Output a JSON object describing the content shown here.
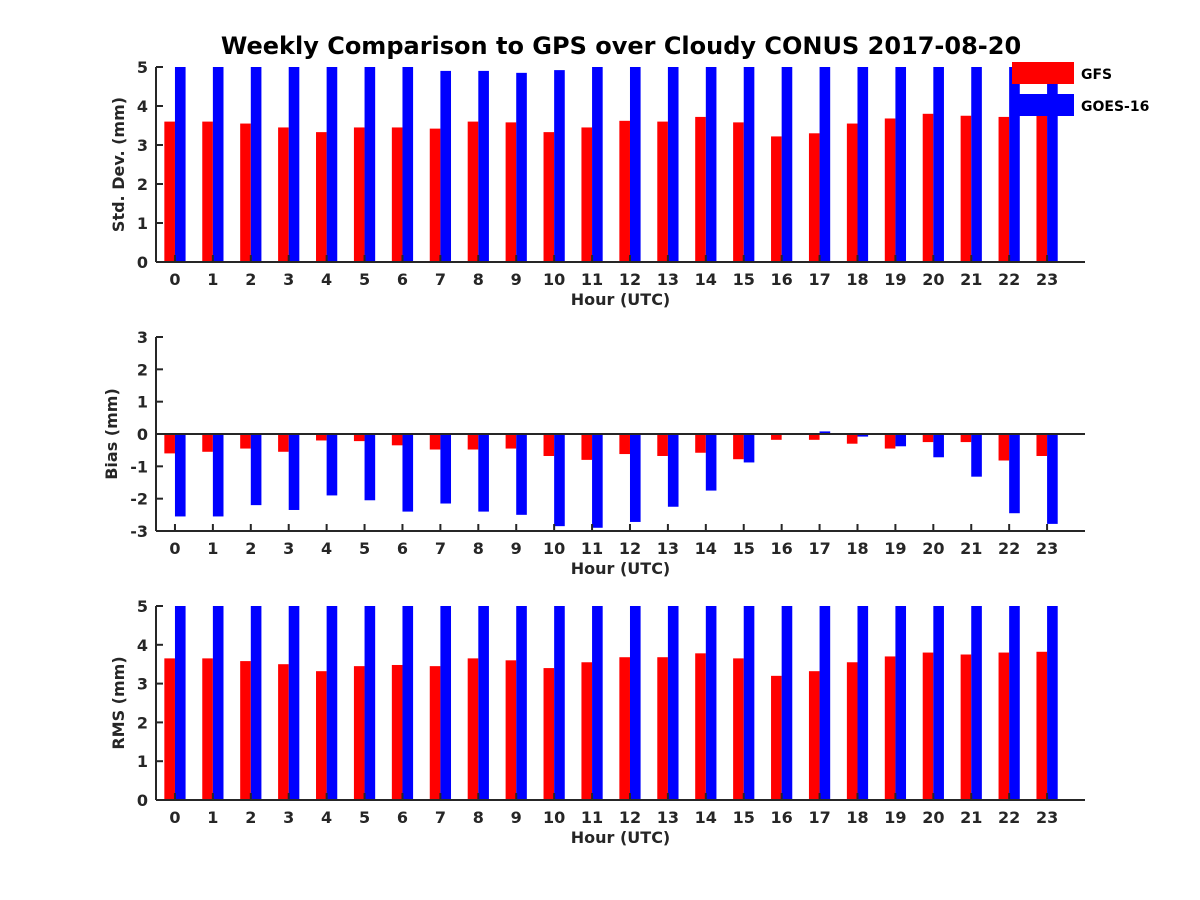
{
  "chart_data": [
    {
      "type": "bar",
      "title": "Weekly Comparison to GPS over Cloudy CONUS 2017-08-20",
      "xlabel": "Hour (UTC)",
      "ylabel": "Std. Dev. (mm)",
      "ylim": [
        0,
        5
      ],
      "yticks": [
        0,
        1,
        2,
        3,
        4,
        5
      ],
      "categories": [
        "0",
        "1",
        "2",
        "3",
        "4",
        "5",
        "6",
        "7",
        "8",
        "9",
        "10",
        "11",
        "12",
        "13",
        "14",
        "15",
        "16",
        "17",
        "18",
        "19",
        "20",
        "21",
        "22",
        "23"
      ],
      "legend": "top-right",
      "series": [
        {
          "name": "GFS",
          "color": "#ff0000",
          "values": [
            3.6,
            3.6,
            3.55,
            3.45,
            3.33,
            3.45,
            3.45,
            3.42,
            3.6,
            3.58,
            3.33,
            3.45,
            3.62,
            3.6,
            3.72,
            3.58,
            3.22,
            3.3,
            3.55,
            3.68,
            3.8,
            3.75,
            3.72,
            3.75
          ]
        },
        {
          "name": "GOES-16",
          "color": "#0000ff",
          "values": [
            5,
            5,
            5,
            5,
            5,
            5,
            5,
            4.9,
            4.9,
            4.85,
            4.92,
            5,
            5,
            5,
            5,
            5,
            5,
            5,
            5,
            5,
            5,
            5,
            5,
            5
          ]
        }
      ]
    },
    {
      "type": "bar",
      "title": "",
      "xlabel": "Hour (UTC)",
      "ylabel": "Bias (mm)",
      "ylim": [
        -3,
        3
      ],
      "yticks": [
        -3,
        -2,
        -1,
        0,
        1,
        2,
        3
      ],
      "categories": [
        "0",
        "1",
        "2",
        "3",
        "4",
        "5",
        "6",
        "7",
        "8",
        "9",
        "10",
        "11",
        "12",
        "13",
        "14",
        "15",
        "16",
        "17",
        "18",
        "19",
        "20",
        "21",
        "22",
        "23"
      ],
      "series": [
        {
          "name": "GFS",
          "color": "#ff0000",
          "values": [
            -0.6,
            -0.55,
            -0.45,
            -0.55,
            -0.2,
            -0.22,
            -0.35,
            -0.48,
            -0.48,
            -0.45,
            -0.68,
            -0.8,
            -0.62,
            -0.68,
            -0.58,
            -0.78,
            -0.18,
            -0.18,
            -0.3,
            -0.45,
            -0.25,
            -0.25,
            -0.82,
            -0.68
          ]
        },
        {
          "name": "GOES-16",
          "color": "#0000ff",
          "values": [
            -2.55,
            -2.55,
            -2.2,
            -2.35,
            -1.9,
            -2.05,
            -2.4,
            -2.15,
            -2.4,
            -2.5,
            -2.85,
            -2.9,
            -2.72,
            -2.25,
            -1.75,
            -0.88,
            -0.02,
            0.08,
            -0.08,
            -0.38,
            -0.72,
            -1.32,
            -2.45,
            -2.78
          ]
        }
      ]
    },
    {
      "type": "bar",
      "title": "",
      "xlabel": "Hour (UTC)",
      "ylabel": "RMS (mm)",
      "ylim": [
        0,
        5
      ],
      "yticks": [
        0,
        1,
        2,
        3,
        4,
        5
      ],
      "categories": [
        "0",
        "1",
        "2",
        "3",
        "4",
        "5",
        "6",
        "7",
        "8",
        "9",
        "10",
        "11",
        "12",
        "13",
        "14",
        "15",
        "16",
        "17",
        "18",
        "19",
        "20",
        "21",
        "22",
        "23"
      ],
      "series": [
        {
          "name": "GFS",
          "color": "#ff0000",
          "values": [
            3.65,
            3.65,
            3.58,
            3.5,
            3.32,
            3.45,
            3.48,
            3.45,
            3.65,
            3.6,
            3.4,
            3.55,
            3.68,
            3.68,
            3.78,
            3.65,
            3.2,
            3.32,
            3.55,
            3.7,
            3.8,
            3.75,
            3.8,
            3.82
          ]
        },
        {
          "name": "GOES-16",
          "color": "#0000ff",
          "values": [
            5,
            5,
            5,
            5,
            5,
            5,
            5,
            5,
            5,
            5,
            5,
            5,
            5,
            5,
            5,
            5,
            5,
            5,
            5,
            5,
            5,
            5,
            5,
            5
          ]
        }
      ]
    }
  ]
}
